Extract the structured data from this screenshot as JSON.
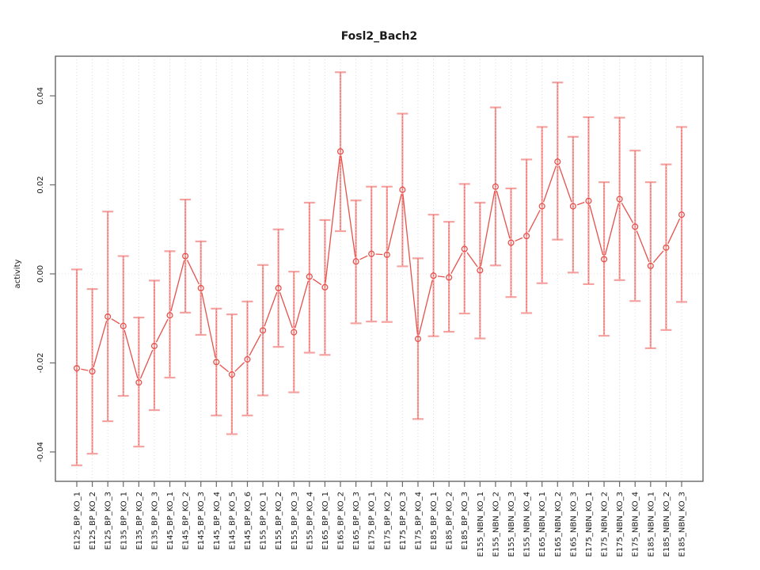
{
  "chart_data": {
    "type": "line",
    "title": "Fosl2_Bach2",
    "xlabel": "",
    "ylabel": "activity",
    "legend": "none",
    "grid": {
      "vertical_dotted_per_category": true,
      "horizontal_zero_line_dotted": true
    },
    "ylim": [
      -0.0466,
      0.0489
    ],
    "y_ticks": [
      -0.04,
      -0.02,
      0.0,
      0.02,
      0.04
    ],
    "y_tick_labels": [
      "-0.04",
      "-0.02",
      "0.00",
      "0.02",
      "0.04"
    ],
    "categories": [
      "E125_BP_KO_1",
      "E125_BP_KO_2",
      "E125_BP_KO_3",
      "E135_BP_KO_1",
      "E135_BP_KO_2",
      "E135_BP_KO_3",
      "E145_BP_KO_1",
      "E145_BP_KO_2",
      "E145_BP_KO_3",
      "E145_BP_KO_4",
      "E145_BP_KO_5",
      "E145_BP_KO_6",
      "E155_BP_KO_1",
      "E155_BP_KO_2",
      "E155_BP_KO_3",
      "E155_BP_KO_4",
      "E165_BP_KO_1",
      "E165_BP_KO_2",
      "E165_BP_KO_3",
      "E175_BP_KO_1",
      "E175_BP_KO_2",
      "E175_BP_KO_3",
      "E175_BP_KO_4",
      "E185_BP_KO_1",
      "E185_BP_KO_2",
      "E185_BP_KO_3",
      "E155_NBN_KO_1",
      "E155_NBN_KO_2",
      "E155_NBN_KO_3",
      "E155_NBN_KO_4",
      "E165_NBN_KO_1",
      "E165_NBN_KO_2",
      "E165_NBN_KO_3",
      "E175_NBN_KO_1",
      "E175_NBN_KO_2",
      "E175_NBN_KO_3",
      "E175_NBN_KO_4",
      "E185_NBN_KO_1",
      "E185_NBN_KO_2",
      "E185_NBN_KO_3"
    ],
    "series": [
      {
        "name": "activity",
        "values": [
          -0.0212,
          -0.0219,
          -0.0096,
          -0.0117,
          -0.0244,
          -0.0162,
          -0.0093,
          0.004,
          -0.0032,
          -0.0198,
          -0.0226,
          -0.0192,
          -0.0127,
          -0.0032,
          -0.0131,
          -0.0006,
          -0.003,
          0.0275,
          0.0028,
          0.0045,
          0.0043,
          0.0189,
          -0.0146,
          -0.0004,
          -0.0008,
          0.0056,
          0.0008,
          0.0196,
          0.007,
          0.0085,
          0.0152,
          0.0252,
          0.0152,
          0.0164,
          0.0033,
          0.0168,
          0.0106,
          0.0018,
          0.0059,
          0.0133
        ],
        "error_high": [
          0.001,
          -0.0034,
          0.014,
          0.004,
          -0.0098,
          -0.0015,
          0.0051,
          0.0167,
          0.0073,
          -0.0078,
          -0.0091,
          -0.0062,
          0.002,
          0.01,
          0.0005,
          0.016,
          0.0121,
          0.0453,
          0.0165,
          0.0196,
          0.0196,
          0.036,
          0.0035,
          0.0133,
          0.0117,
          0.0202,
          0.016,
          0.0374,
          0.0192,
          0.0257,
          0.033,
          0.043,
          0.0308,
          0.0352,
          0.0206,
          0.0351,
          0.0277,
          0.0206,
          0.0246,
          0.033
        ],
        "error_low": [
          -0.043,
          -0.0404,
          -0.0331,
          -0.0274,
          -0.0388,
          -0.0306,
          -0.0233,
          -0.0087,
          -0.0137,
          -0.0318,
          -0.036,
          -0.0318,
          -0.0273,
          -0.0164,
          -0.0266,
          -0.0177,
          -0.0182,
          0.0096,
          -0.0111,
          -0.0107,
          -0.0108,
          0.0017,
          -0.0326,
          -0.014,
          -0.013,
          -0.0089,
          -0.0145,
          0.0019,
          -0.0052,
          -0.0088,
          -0.0021,
          0.0077,
          0.0003,
          -0.0023,
          -0.0139,
          -0.0014,
          -0.0061,
          -0.0167,
          -0.0126,
          -0.0063
        ]
      }
    ],
    "colors": {
      "point_and_line": "#e6514c",
      "error_bar": "#f5a3a1",
      "grid": "#dcdcdc",
      "axis": "#5a5a5a",
      "tick": "#6a6a6a",
      "text": "#1a1a1a",
      "background": "#ffffff"
    }
  }
}
